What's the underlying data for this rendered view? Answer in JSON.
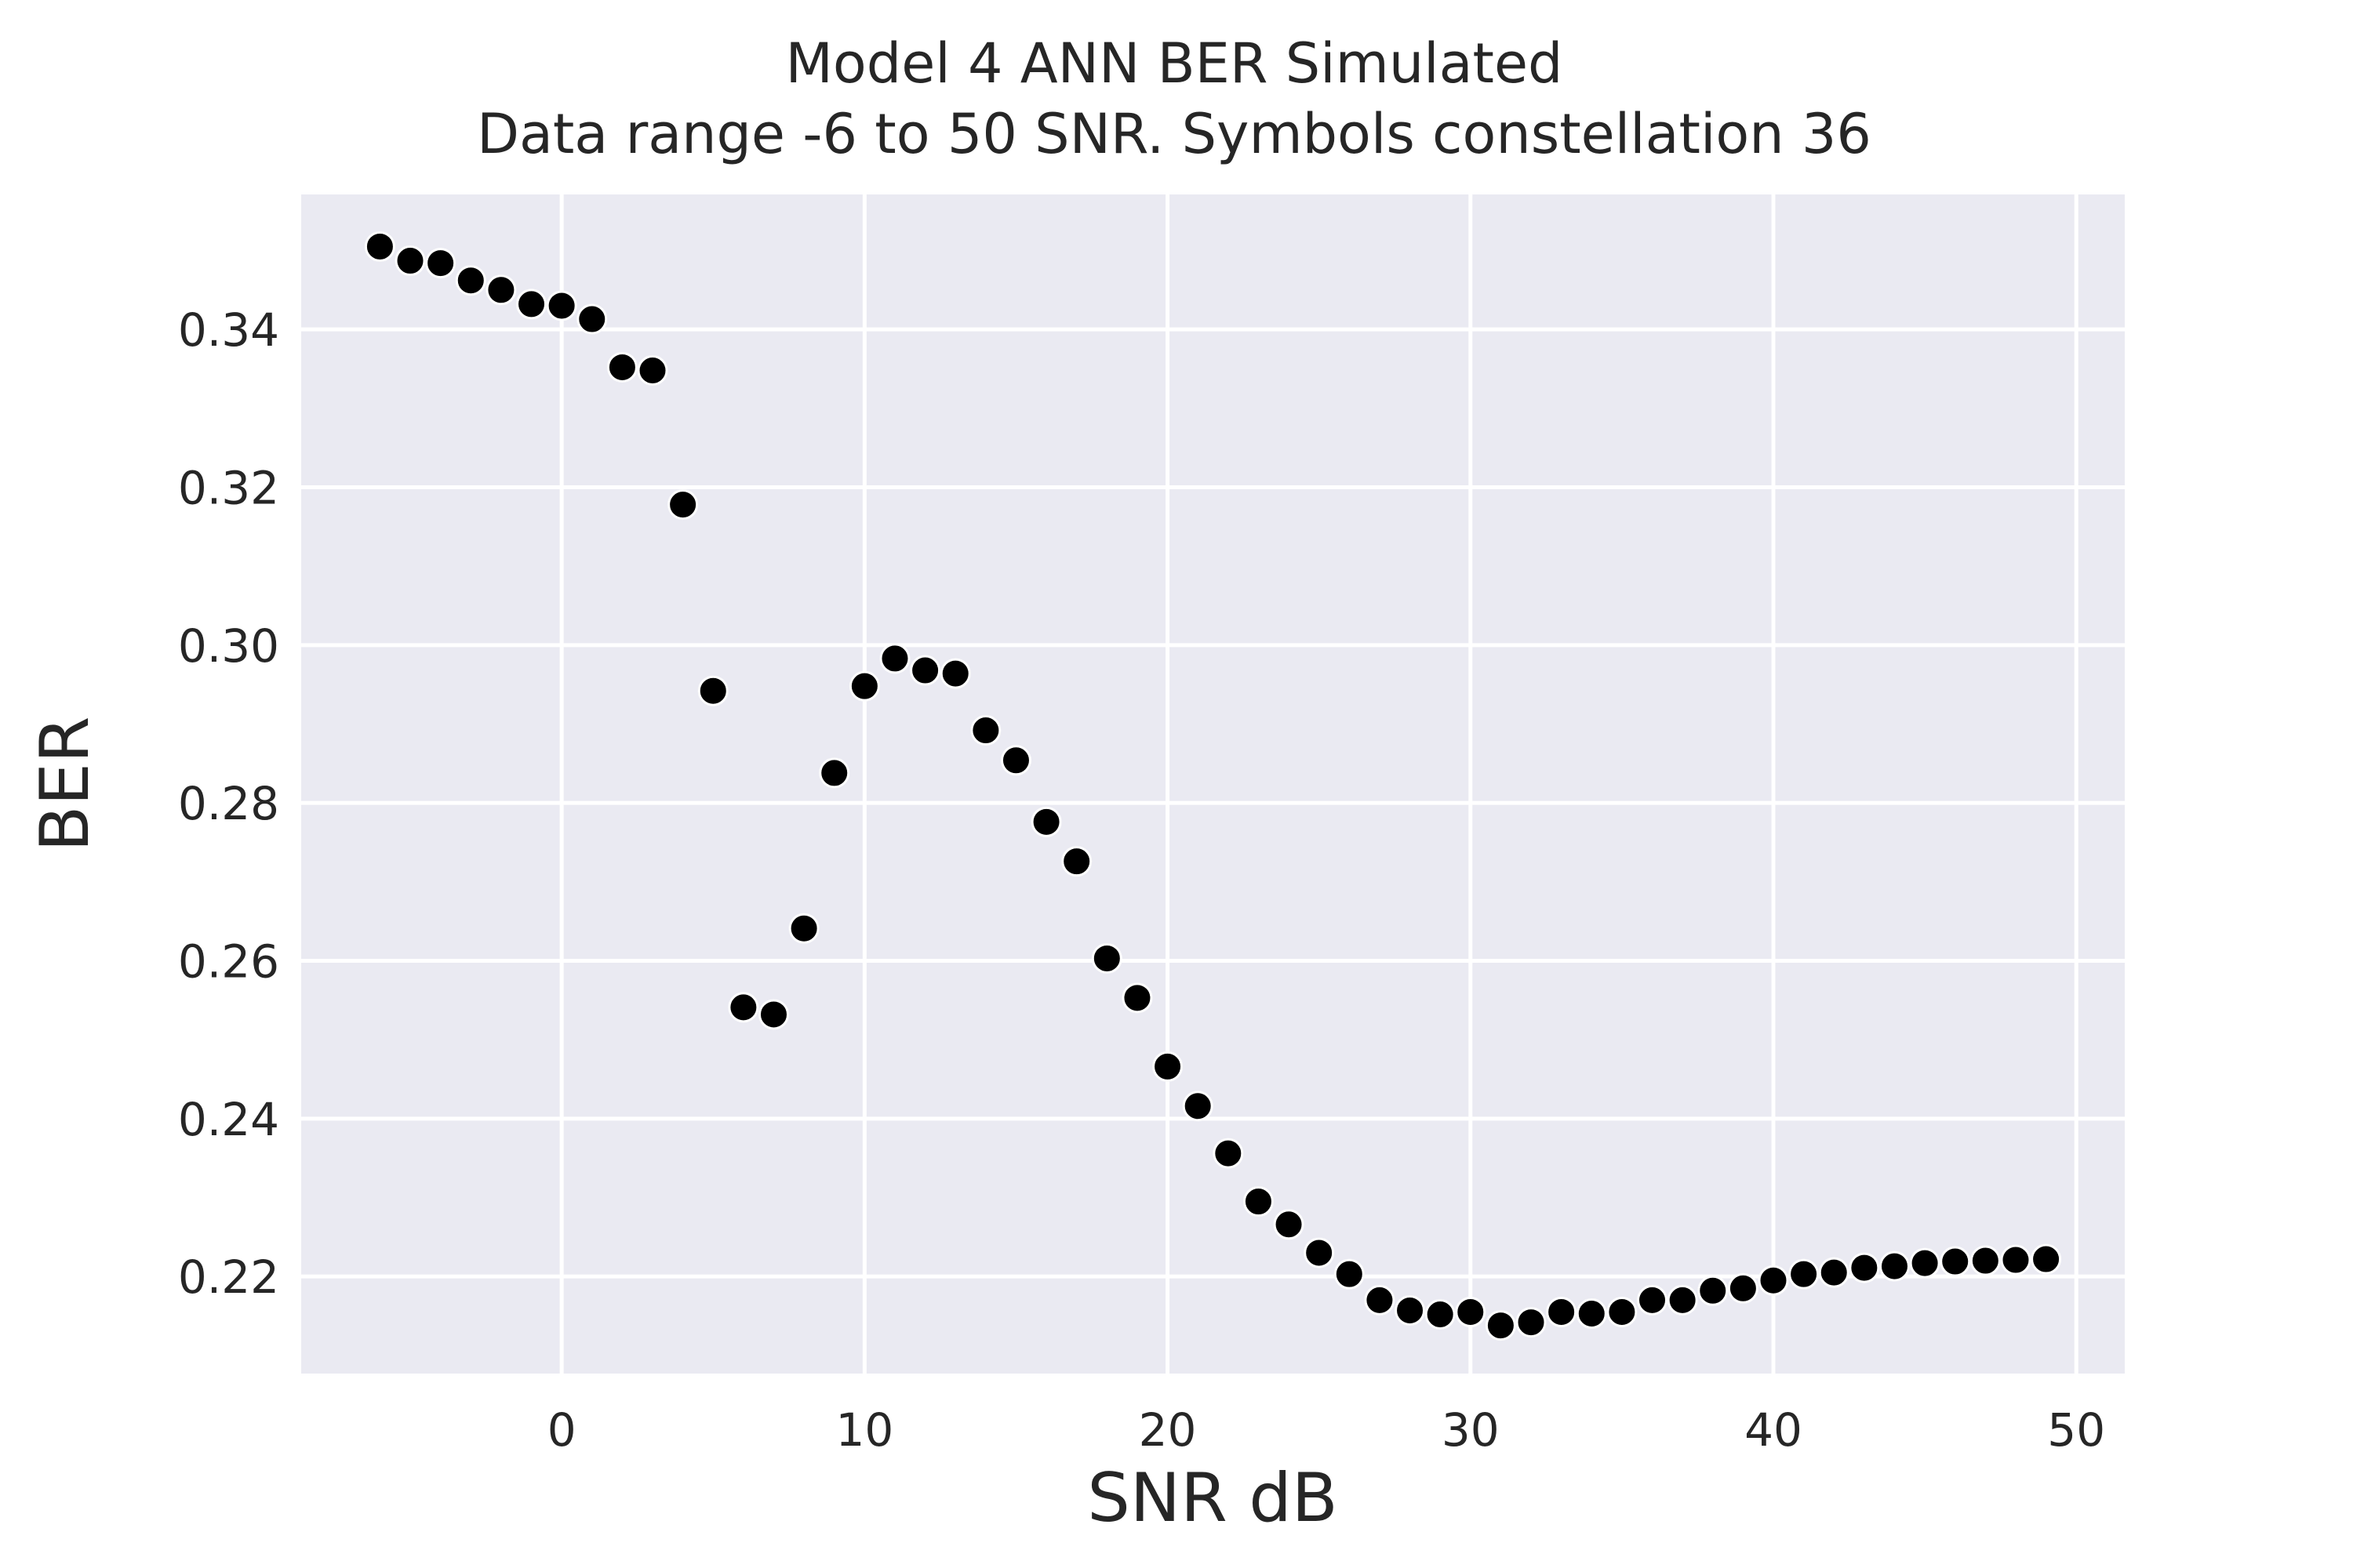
{
  "chart_data": {
    "type": "scatter",
    "title": "Model 4 ANN BER Simulated",
    "subtitle": "Data range -6 to 50 SNR. Symbols constellation 36",
    "xlabel": "SNR dB",
    "ylabel": "BER",
    "xlim": [
      -8.6,
      51.6
    ],
    "ylim": [
      0.2077,
      0.3571
    ],
    "xticks": [
      0,
      10,
      20,
      30,
      40,
      50
    ],
    "yticks": [
      0.22,
      0.24,
      0.26,
      0.28,
      0.3,
      0.32,
      0.34
    ],
    "ytick_labels": [
      "0.22",
      "0.24",
      "0.26",
      "0.28",
      "0.30",
      "0.32",
      "0.34"
    ],
    "grid": true,
    "background": "#eaeaf2",
    "point_color": "#000000",
    "x": [
      -6,
      -5,
      -4,
      -3,
      -2,
      -1,
      0,
      1,
      2,
      3,
      4,
      5,
      6,
      7,
      8,
      9,
      10,
      11,
      12,
      13,
      14,
      15,
      16,
      17,
      18,
      19,
      20,
      21,
      22,
      23,
      24,
      25,
      26,
      27,
      28,
      29,
      30,
      31,
      32,
      33,
      34,
      35,
      36,
      37,
      38,
      39,
      40,
      41,
      42,
      43,
      44,
      45,
      46,
      47,
      48,
      49
    ],
    "y": [
      0.3505,
      0.3487,
      0.3484,
      0.3462,
      0.345,
      0.3432,
      0.343,
      0.3413,
      0.3352,
      0.3348,
      0.3178,
      0.2942,
      0.2541,
      0.2532,
      0.2641,
      0.2838,
      0.2948,
      0.2983,
      0.2968,
      0.2964,
      0.2892,
      0.2854,
      0.2776,
      0.2726,
      0.2603,
      0.2553,
      0.2466,
      0.2416,
      0.2356,
      0.2295,
      0.2266,
      0.223,
      0.2203,
      0.217,
      0.2157,
      0.2152,
      0.2155,
      0.2138,
      0.2142,
      0.2155,
      0.2153,
      0.2155,
      0.217,
      0.217,
      0.2182,
      0.2185,
      0.2195,
      0.2203,
      0.2205,
      0.2211,
      0.2213,
      0.2217,
      0.2219,
      0.222,
      0.2221,
      0.2222
    ]
  }
}
